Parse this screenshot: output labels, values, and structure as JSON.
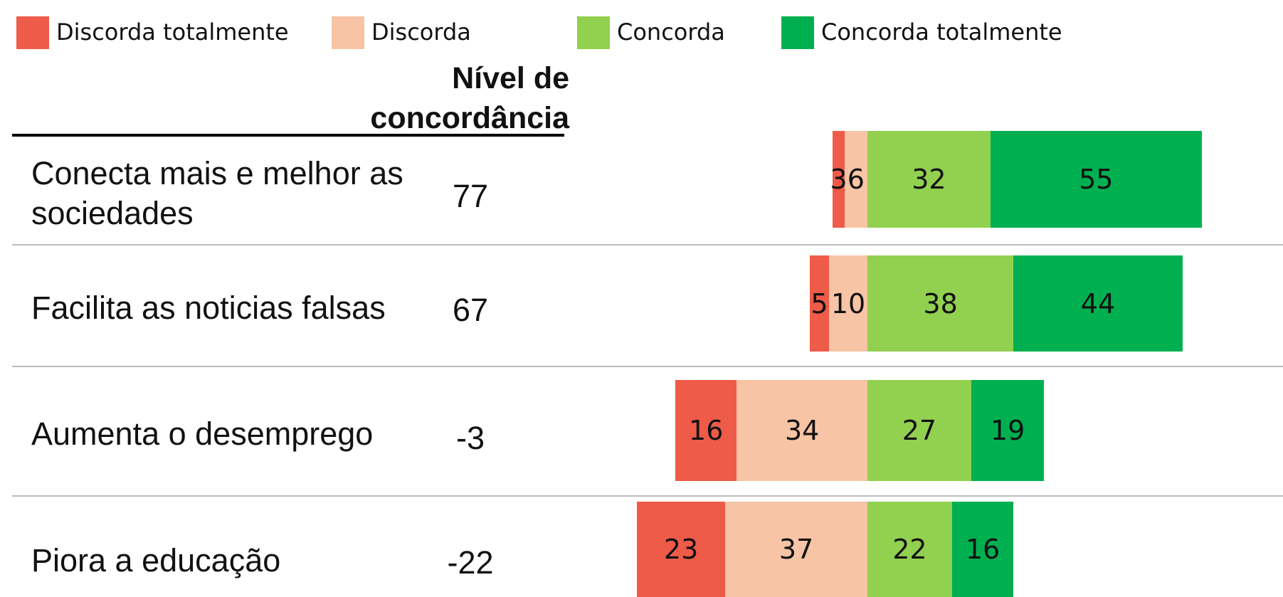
{
  "chart_data": {
    "type": "diverging_bar",
    "legend": "top",
    "level_title": "Nível de concordância",
    "categories": [
      "Conecta mais e melhor as sociedades",
      "Facilita as noticias falsas",
      "Aumenta o desemprego",
      "Piora a educação"
    ],
    "levels": [
      77,
      67,
      -3,
      -22
    ],
    "series": [
      {
        "name": "Discorda totalmente",
        "color": "#ee5b48",
        "values": [
          3,
          5,
          16,
          23
        ]
      },
      {
        "name": "Discorda",
        "color": "#f7c4a5",
        "values": [
          6,
          10,
          34,
          37
        ]
      },
      {
        "name": "Concorda",
        "color": "#92d050",
        "values": [
          32,
          38,
          27,
          22
        ]
      },
      {
        "name": "Concorda totalmente",
        "color": "#00b050",
        "values": [
          55,
          44,
          19,
          16
        ]
      }
    ]
  }
}
